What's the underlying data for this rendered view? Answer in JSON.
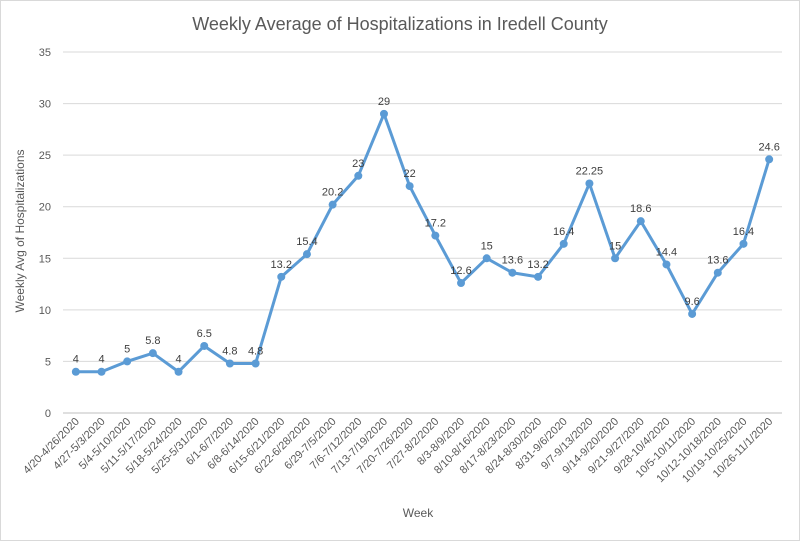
{
  "chart_data": {
    "type": "line",
    "title": "Weekly Average of Hospitalizations in Iredell County",
    "xlabel": "Week",
    "ylabel": "Weekly Avg of Hospitalizations",
    "ylim": [
      0,
      35
    ],
    "yticks": [
      0,
      5,
      10,
      15,
      20,
      25,
      30,
      35
    ],
    "grid": true,
    "line_color": "#5B9BD5",
    "categories": [
      "4/20-4/26/2020",
      "4/27-5/3/2020",
      "5/4-5/10/2020",
      "5/11-5/17/2020",
      "5/18-5/24/2020",
      "5/25-5/31/2020",
      "6/1-6/7/2020",
      "6/8-6/14/2020",
      "6/15-6/21/2020",
      "6/22-6/28/2020",
      "6/29-7/5/2020",
      "7/6-7/12/2020",
      "7/13-7/19/2020",
      "7/20-7/26/2020",
      "7/27-8/2/2020",
      "8/3-8/9/2020",
      "8/10-8/16/2020",
      "8/17-8/23/2020",
      "8/24-8/30/2020",
      "8/31-9/6/2020",
      "9/7-9/13/2020",
      "9/14-9/20/2020",
      "9/21-9/27/2020",
      "9/28-10/4/2020",
      "10/5-10/11/2020",
      "10/12-10/18/2020",
      "10/19-10/25/2020",
      "10/26-11/1/2020"
    ],
    "series": [
      {
        "values": [
          4,
          4,
          5,
          5.8,
          4,
          6.5,
          4.8,
          4.8,
          13.2,
          15.4,
          20.2,
          23,
          29,
          22,
          17.2,
          12.6,
          15,
          13.6,
          13.2,
          16.4,
          22.25,
          15,
          18.6,
          14.4,
          9.6,
          13.6,
          16.4,
          24.6
        ],
        "labels": [
          "4",
          "4",
          "5",
          "5.8",
          "4",
          "6.5",
          "4.8",
          "4.8",
          "13.2",
          "15.4",
          "20.2",
          "23",
          "29",
          "22",
          "17.2",
          "12.6",
          "15",
          "13.6",
          "13.2",
          "16.4",
          "22.25",
          "15",
          "18.6",
          "14.4",
          "9.6",
          "13.6",
          "16.4",
          "24.6"
        ]
      }
    ]
  }
}
